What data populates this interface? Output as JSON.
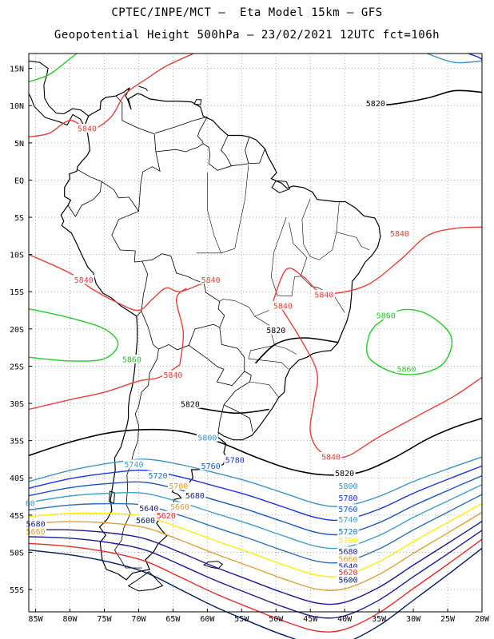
{
  "header": {
    "title_line1": "CPTEC/INPE/MCT –  Eta Model 15km – GFS",
    "title_line2": "Geopotential Height 500hPa – 23/02/2021 12UTC fct=106h"
  },
  "map": {
    "projection": "latlon",
    "lon_range": [
      -86,
      -20
    ],
    "lat_range": [
      -58,
      17
    ],
    "lat_ticks": [
      "15N",
      "10N",
      "5N",
      "EQ",
      "5S",
      "10S",
      "15S",
      "20S",
      "25S",
      "30S",
      "35S",
      "40S",
      "45S",
      "50S",
      "55S"
    ],
    "lon_ticks": [
      "85W",
      "80W",
      "75W",
      "70W",
      "65W",
      "60W",
      "55W",
      "50W",
      "45W",
      "40W",
      "35W",
      "30W",
      "25W",
      "20W"
    ],
    "grid": "dotted"
  },
  "contours": [
    {
      "value": "5600",
      "color": "#001a66"
    },
    {
      "value": "5620",
      "color": "#e8282a"
    },
    {
      "value": "5640",
      "color": "#1a1a99"
    },
    {
      "value": "5660",
      "color": "#1a1a99"
    },
    {
      "value": "5680",
      "color": "#e0a030"
    },
    {
      "value": "5700",
      "color": "#ffee00"
    },
    {
      "value": "5720",
      "color": "#2a6fb8"
    },
    {
      "value": "5740",
      "color": "#3c9fc8"
    },
    {
      "value": "5760",
      "color": "#1a55c0"
    },
    {
      "value": "5780",
      "color": "#1a33dd"
    },
    {
      "value": "5800",
      "color": "#3a94c4"
    },
    {
      "value": "5820",
      "color": "#000000"
    },
    {
      "value": "5840",
      "color": "#e8403a"
    },
    {
      "value": "5860",
      "color": "#22cc22"
    }
  ],
  "contour_labels": [
    {
      "text": "5820",
      "color": "#000000",
      "lon": -35.5,
      "lat": 10.2
    },
    {
      "text": "5840",
      "color": "#e8403a",
      "lon": -77.5,
      "lat": 6.8
    },
    {
      "text": "5840",
      "color": "#e8403a",
      "lon": -32.0,
      "lat": -7.3
    },
    {
      "text": "5840",
      "color": "#e8403a",
      "lon": -78.0,
      "lat": -13.5
    },
    {
      "text": "5840",
      "color": "#e8403a",
      "lon": -59.5,
      "lat": -13.5
    },
    {
      "text": "5840",
      "color": "#e8403a",
      "lon": -43.0,
      "lat": -15.5
    },
    {
      "text": "5840",
      "color": "#e8403a",
      "lon": -49.0,
      "lat": -17.0
    },
    {
      "text": "5860",
      "color": "#22cc22",
      "lon": -34.0,
      "lat": -18.3
    },
    {
      "text": "5860",
      "color": "#22cc22",
      "lon": -31.0,
      "lat": -25.5
    },
    {
      "text": "5860",
      "color": "#22cc22",
      "lon": -71.0,
      "lat": -24.2
    },
    {
      "text": "5840",
      "color": "#e8403a",
      "lon": -65.0,
      "lat": -26.3
    },
    {
      "text": "5820",
      "color": "#000000",
      "lon": -50.0,
      "lat": -20.3
    },
    {
      "text": "5820",
      "color": "#000000",
      "lon": -62.5,
      "lat": -30.2
    },
    {
      "text": "5840",
      "color": "#e8403a",
      "lon": -42.0,
      "lat": -37.3
    },
    {
      "text": "5800",
      "color": "#3a94c4",
      "lon": -60.0,
      "lat": -34.7
    },
    {
      "text": "5780",
      "color": "#1a33dd",
      "lon": -56.0,
      "lat": -37.7
    },
    {
      "text": "5760",
      "color": "#1a55c0",
      "lon": -59.5,
      "lat": -38.5
    },
    {
      "text": "5740",
      "color": "#3c9fc8",
      "lon": -70.7,
      "lat": -38.3
    },
    {
      "text": "5720",
      "color": "#2a6fb8",
      "lon": -67.2,
      "lat": -39.8
    },
    {
      "text": "5700",
      "color": "#e0a030",
      "lon": -64.2,
      "lat": -41.2
    },
    {
      "text": "5680",
      "color": "#1a1a99",
      "lon": -61.8,
      "lat": -42.5
    },
    {
      "text": "5660",
      "color": "#e0a030",
      "lon": -64.0,
      "lat": -44.0
    },
    {
      "text": "5640",
      "color": "#1a1a99",
      "lon": -68.5,
      "lat": -44.2
    },
    {
      "text": "5620",
      "color": "#e8282a",
      "lon": -66.0,
      "lat": -45.2
    },
    {
      "text": "5600",
      "color": "#001a66",
      "lon": -69.0,
      "lat": -45.8
    },
    {
      "text": "5820",
      "color": "#000000",
      "lon": -40.0,
      "lat": -39.5
    },
    {
      "text": "5800",
      "color": "#3a94c4",
      "lon": -39.5,
      "lat": -41.2
    },
    {
      "text": "5780",
      "color": "#1a33dd",
      "lon": -39.5,
      "lat": -42.8
    },
    {
      "text": "5760",
      "color": "#1a55c0",
      "lon": -39.5,
      "lat": -44.3
    },
    {
      "text": "5740",
      "color": "#3c9fc8",
      "lon": -39.5,
      "lat": -45.7
    },
    {
      "text": "5720",
      "color": "#2a6fb8",
      "lon": -39.5,
      "lat": -47.3
    },
    {
      "text": "5700",
      "color": "#ffee00",
      "lon": -39.5,
      "lat": -48.5
    },
    {
      "text": "5680",
      "color": "#1a1a99",
      "lon": -39.5,
      "lat": -50.0
    },
    {
      "text": "5660",
      "color": "#e0a030",
      "lon": -39.5,
      "lat": -51.0
    },
    {
      "text": "5640",
      "color": "#1a1a99",
      "lon": -39.5,
      "lat": -52.0
    },
    {
      "text": "5620",
      "color": "#e8282a",
      "lon": -39.5,
      "lat": -52.8
    },
    {
      "text": "5600",
      "color": "#001a66",
      "lon": -39.5,
      "lat": -53.8
    },
    {
      "text": "60",
      "color": "#3a94c4",
      "lon": -85.8,
      "lat": -43.5
    },
    {
      "text": "5680",
      "color": "#1a1a99",
      "lon": -85.0,
      "lat": -46.3
    },
    {
      "text": "5660",
      "color": "#e0a030",
      "lon": -85.0,
      "lat": -47.3
    }
  ]
}
